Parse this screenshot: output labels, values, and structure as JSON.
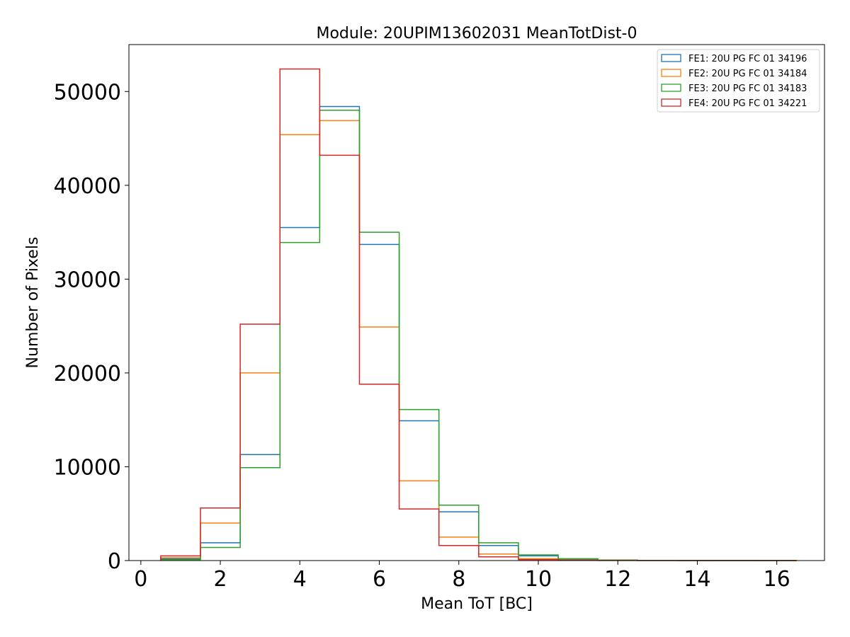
{
  "chart_data": {
    "type": "histogram",
    "title": "Module: 20UPIM13602031 MeanTotDist-0",
    "xlabel": "Mean ToT [BC]",
    "ylabel": "Number of Pixels",
    "xlim": [
      -0.3,
      17.2
    ],
    "ylim": [
      0,
      55000
    ],
    "xticks": [
      0,
      2,
      4,
      6,
      8,
      10,
      12,
      14,
      16
    ],
    "yticks": [
      0,
      10000,
      20000,
      30000,
      40000,
      50000
    ],
    "grid": false,
    "legend_position": "top-right",
    "bin_edges": [
      0.5,
      1.5,
      2.5,
      3.5,
      4.5,
      5.5,
      6.5,
      7.5,
      8.5,
      9.5,
      10.5,
      11.5,
      12.5,
      13.5,
      14.5,
      15.5,
      16.5
    ],
    "series": [
      {
        "name": "FE1: 20U PG FC 01 34196",
        "color": "#1f77b4",
        "values": [
          200,
          1900,
          11300,
          35500,
          48400,
          33700,
          14900,
          5200,
          1600,
          500,
          150,
          50,
          20,
          10,
          5,
          2
        ]
      },
      {
        "name": "FE2: 20U PG FC 01 34184",
        "color": "#ff7f0e",
        "values": [
          300,
          4000,
          20000,
          45400,
          46900,
          24900,
          8500,
          2500,
          700,
          200,
          60,
          20,
          8,
          4,
          2,
          1
        ]
      },
      {
        "name": "FE3: 20U PG FC 01 34183",
        "color": "#2ca02c",
        "values": [
          100,
          1400,
          9900,
          33900,
          48000,
          35000,
          16100,
          5900,
          1900,
          600,
          200,
          60,
          20,
          8,
          4,
          2
        ]
      },
      {
        "name": "FE4: 20U PG FC 01 34221",
        "color": "#d62728",
        "values": [
          500,
          5600,
          25200,
          52400,
          43200,
          18800,
          5500,
          1600,
          400,
          100,
          30,
          10,
          4,
          2,
          1,
          0
        ]
      }
    ]
  }
}
